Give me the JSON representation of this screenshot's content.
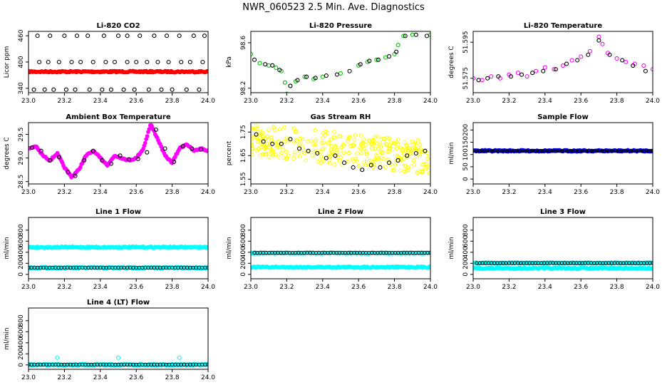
{
  "figure_title": "NWR_060523  2.5 Min. Ave. Diagnostics",
  "colors": {
    "black": "#000000",
    "red": "#ff0000",
    "green": "#00c000",
    "magenta": "#ff00ff",
    "yellow": "#ffff00",
    "blue": "#0000ff",
    "cyan": "#00ffff"
  },
  "chart_data": [
    {
      "type": "scatter",
      "title": "Li-820 CO2",
      "ylabel": "Licor ppm",
      "xlim": [
        23.0,
        24.0
      ],
      "ylim": [
        330,
        470
      ],
      "xticks": [
        "23.0",
        "23.2",
        "23.4",
        "23.6",
        "23.8",
        "24.0"
      ],
      "yticks": [
        "340",
        "400",
        "460"
      ],
      "series": [
        {
          "color": "#000000",
          "style": "open",
          "x": [
            23.05,
            23.12,
            23.2,
            23.27,
            23.33,
            23.42,
            23.5,
            23.55,
            23.62,
            23.7,
            23.77,
            23.84,
            23.92,
            23.98
          ],
          "y": [
            460,
            460,
            460,
            460,
            460,
            460,
            460,
            460,
            460,
            460,
            460,
            460,
            460,
            460
          ]
        },
        {
          "color": "#000000",
          "style": "open",
          "x": [
            23.06,
            23.11,
            23.17,
            23.24,
            23.29,
            23.36,
            23.43,
            23.48,
            23.55,
            23.6,
            23.66,
            23.72,
            23.78,
            23.85,
            23.9,
            23.97
          ],
          "y": [
            400,
            400,
            400,
            400,
            400,
            400,
            400,
            400,
            400,
            400,
            400,
            400,
            400,
            400,
            400,
            400
          ]
        },
        {
          "color": "#000000",
          "style": "open",
          "x": [
            23.03,
            23.09,
            23.14,
            23.21,
            23.26,
            23.34,
            23.41,
            23.46,
            23.53,
            23.59,
            23.67,
            23.74,
            23.8,
            23.88,
            23.95
          ],
          "y": [
            337,
            337,
            337,
            337,
            337,
            337,
            337,
            337,
            337,
            337,
            337,
            337,
            337,
            337,
            337
          ]
        },
        {
          "color": "#ff0000",
          "style": "band",
          "x": [
            23.0,
            24.0
          ],
          "y": [
            378,
            378
          ]
        }
      ]
    },
    {
      "type": "scatter",
      "title": "Li-820 Pressure",
      "ylabel": "kPa",
      "xlim": [
        23.0,
        24.0
      ],
      "ylim": [
        98.16,
        98.7
      ],
      "xticks": [
        "23.0",
        "23.2",
        "23.4",
        "23.6",
        "23.8",
        "24.0"
      ],
      "yticks": [
        "98.2",
        "98.6"
      ],
      "series": [
        {
          "color": "#00c000",
          "style": "open",
          "x": [
            23.0,
            23.05,
            23.1,
            23.14,
            23.17,
            23.19,
            23.2,
            23.22,
            23.25,
            23.3,
            23.35,
            23.4,
            23.5,
            23.6,
            23.65,
            23.7,
            23.75,
            23.8,
            23.82,
            23.85,
            23.9,
            24.0
          ],
          "y": [
            98.5,
            98.42,
            98.4,
            98.38,
            98.35,
            98.25,
            98.15,
            98.22,
            98.26,
            98.3,
            98.28,
            98.3,
            98.33,
            98.4,
            98.43,
            98.45,
            98.47,
            98.5,
            98.58,
            98.66,
            98.67,
            98.67
          ]
        },
        {
          "color": "#000000",
          "style": "open",
          "x": [
            23.02,
            23.08,
            23.12,
            23.16,
            23.22,
            23.26,
            23.31,
            23.36,
            23.42,
            23.48,
            23.55,
            23.61,
            23.66,
            23.71,
            23.77,
            23.81,
            23.86,
            23.92,
            23.98
          ],
          "y": [
            98.45,
            98.41,
            98.4,
            98.36,
            98.22,
            98.27,
            98.3,
            98.29,
            98.31,
            98.32,
            98.35,
            98.41,
            98.44,
            98.45,
            98.48,
            98.52,
            98.66,
            98.67,
            98.66
          ]
        }
      ]
    },
    {
      "type": "scatter",
      "title": "Li-820 Temperature",
      "ylabel": "degrees C",
      "xlim": [
        23.0,
        24.0
      ],
      "ylim": [
        51.567,
        51.601
      ],
      "xticks": [
        "23.0",
        "23.2",
        "23.4",
        "23.6",
        "23.8",
        "24.0"
      ],
      "yticks": [
        "51.575",
        "51.595"
      ],
      "series": [
        {
          "color": "#ff00ff",
          "style": "open",
          "x": [
            23.0,
            23.05,
            23.1,
            23.15,
            23.2,
            23.25,
            23.3,
            23.35,
            23.4,
            23.45,
            23.5,
            23.55,
            23.6,
            23.65,
            23.7,
            23.72,
            23.75,
            23.8,
            23.85,
            23.9,
            23.95,
            24.0
          ],
          "y": [
            51.575,
            51.574,
            51.576,
            51.575,
            51.577,
            51.578,
            51.576,
            51.579,
            51.581,
            51.58,
            51.582,
            51.585,
            51.587,
            51.59,
            51.598,
            51.594,
            51.589,
            51.586,
            51.584,
            51.583,
            51.582,
            51.58
          ]
        },
        {
          "color": "#000000",
          "style": "open",
          "x": [
            23.03,
            23.08,
            23.14,
            23.21,
            23.27,
            23.33,
            23.39,
            23.46,
            23.52,
            23.58,
            23.64,
            23.7,
            23.76,
            23.83,
            23.89,
            23.96
          ],
          "y": [
            51.574,
            51.575,
            51.576,
            51.576,
            51.577,
            51.578,
            51.579,
            51.58,
            51.583,
            51.585,
            51.588,
            51.596,
            51.588,
            51.585,
            51.582,
            51.579
          ]
        }
      ]
    },
    {
      "type": "line",
      "title": "Ambient Box Temperature",
      "ylabel": "degrees C",
      "xlim": [
        23.0,
        24.0
      ],
      "ylim": [
        28.45,
        29.75
      ],
      "xticks": [
        "23.0",
        "23.2",
        "23.4",
        "23.6",
        "23.8",
        "24.0"
      ],
      "yticks": [
        "28.5",
        "29.0",
        "29.5"
      ],
      "series": [
        {
          "color": "#ff00ff",
          "style": "band",
          "x": [
            23.0,
            23.04,
            23.08,
            23.12,
            23.16,
            23.2,
            23.24,
            23.28,
            23.32,
            23.36,
            23.4,
            23.44,
            23.48,
            23.52,
            23.56,
            23.6,
            23.64,
            23.68,
            23.72,
            23.76,
            23.8,
            23.84,
            23.88,
            23.92,
            23.96,
            24.0
          ],
          "y": [
            29.2,
            29.25,
            29.05,
            28.95,
            29.1,
            28.8,
            28.6,
            28.75,
            29.05,
            29.15,
            29.0,
            28.85,
            29.05,
            29.0,
            28.95,
            29.0,
            29.2,
            29.72,
            29.4,
            29.05,
            28.9,
            29.2,
            29.3,
            29.15,
            29.2,
            29.15
          ]
        },
        {
          "color": "#000000",
          "style": "open",
          "x": [
            23.02,
            23.07,
            23.12,
            23.17,
            23.22,
            23.26,
            23.31,
            23.36,
            23.41,
            23.46,
            23.51,
            23.56,
            23.61,
            23.66,
            23.71,
            23.76,
            23.81,
            23.86,
            23.91,
            23.96
          ],
          "y": [
            29.22,
            29.15,
            28.95,
            29.02,
            28.7,
            28.62,
            28.95,
            29.15,
            28.95,
            28.88,
            29.05,
            28.97,
            28.98,
            29.12,
            29.6,
            29.2,
            28.92,
            29.25,
            29.2,
            29.18
          ]
        }
      ]
    },
    {
      "type": "scatter",
      "title": "Gas Stream RH",
      "ylabel": "percent",
      "xlim": [
        23.0,
        24.0
      ],
      "ylim": [
        1.53,
        1.79
      ],
      "xticks": [
        "23.0",
        "23.2",
        "23.4",
        "23.6",
        "23.8",
        "24.0"
      ],
      "yticks": [
        "1.55",
        "1.65",
        "1.75"
      ],
      "series": [
        {
          "color": "#ffff00",
          "style": "cloud",
          "x": [
            23.0,
            24.0
          ],
          "y": [
            1.72,
            1.64
          ]
        },
        {
          "color": "#000000",
          "style": "open",
          "x": [
            23.03,
            23.07,
            23.12,
            23.17,
            23.22,
            23.27,
            23.32,
            23.37,
            23.42,
            23.47,
            23.52,
            23.57,
            23.62,
            23.67,
            23.72,
            23.77,
            23.82,
            23.87,
            23.92,
            23.97
          ],
          "y": [
            1.74,
            1.71,
            1.7,
            1.7,
            1.72,
            1.68,
            1.67,
            1.66,
            1.64,
            1.65,
            1.62,
            1.6,
            1.59,
            1.61,
            1.6,
            1.62,
            1.63,
            1.65,
            1.66,
            1.67
          ]
        }
      ]
    },
    {
      "type": "scatter",
      "title": "Sample Flow",
      "ylabel": "ml/min",
      "xlim": [
        23.0,
        24.0
      ],
      "ylim": [
        -20,
        230
      ],
      "xticks": [
        "23.0",
        "23.2",
        "23.4",
        "23.6",
        "23.8",
        "24.0"
      ],
      "yticks": [
        "0",
        "50",
        "100",
        "150",
        "200"
      ],
      "series": [
        {
          "color": "#0000ff",
          "style": "band",
          "x": [
            23.0,
            24.0
          ],
          "y": [
            115,
            115
          ]
        },
        {
          "color": "#000000",
          "style": "line",
          "x": [
            23.0,
            24.0
          ],
          "y": [
            115,
            115
          ]
        }
      ]
    },
    {
      "type": "scatter",
      "title": "Line 1 Flow",
      "ylabel": "ml/min",
      "xlim": [
        23.0,
        24.0
      ],
      "ylim": [
        -80,
        1030
      ],
      "xticks": [
        "23.0",
        "23.2",
        "23.4",
        "23.6",
        "23.8",
        "24.0"
      ],
      "yticks": [
        "0",
        "200",
        "400",
        "600",
        "800"
      ],
      "series": [
        {
          "color": "#00ffff",
          "style": "band",
          "x": [
            23.0,
            24.0
          ],
          "y": [
            490,
            490
          ]
        },
        {
          "color": "#00ffff",
          "style": "band",
          "x": [
            23.0,
            24.0
          ],
          "y": [
            120,
            120
          ]
        },
        {
          "color": "#000000",
          "style": "opensmall",
          "x": [
            23.0,
            24.0
          ],
          "y": [
            120,
            120
          ]
        }
      ]
    },
    {
      "type": "scatter",
      "title": "Line 2 Flow",
      "ylabel": "ml/min",
      "xlim": [
        23.0,
        24.0
      ],
      "ylim": [
        -80,
        1030
      ],
      "xticks": [
        "23.0",
        "23.2",
        "23.4",
        "23.6",
        "23.8",
        "24.0"
      ],
      "yticks": [
        "0",
        "200",
        "400",
        "600",
        "800"
      ],
      "series": [
        {
          "color": "#00ffff",
          "style": "band",
          "x": [
            23.0,
            24.0
          ],
          "y": [
            130,
            130
          ]
        },
        {
          "color": "#00ffff",
          "style": "band",
          "x": [
            23.0,
            24.0
          ],
          "y": [
            385,
            385
          ]
        },
        {
          "color": "#000000",
          "style": "opensmall",
          "x": [
            23.02,
            24.0
          ],
          "y": [
            390,
            390
          ]
        }
      ]
    },
    {
      "type": "scatter",
      "title": "Line 3 Flow",
      "ylabel": "ml/min",
      "xlim": [
        23.0,
        24.0
      ],
      "ylim": [
        -80,
        1030
      ],
      "xticks": [
        "23.0",
        "23.2",
        "23.4",
        "23.6",
        "23.8",
        "24.0"
      ],
      "yticks": [
        "0",
        "200",
        "400",
        "600",
        "800"
      ],
      "series": [
        {
          "color": "#00ffff",
          "style": "band",
          "x": [
            23.0,
            24.0
          ],
          "y": [
            110,
            110
          ]
        },
        {
          "color": "#00ffff",
          "style": "band",
          "x": [
            23.0,
            24.0
          ],
          "y": [
            205,
            205
          ]
        },
        {
          "color": "#000000",
          "style": "opensmall",
          "x": [
            23.02,
            24.0
          ],
          "y": [
            205,
            205
          ]
        }
      ]
    },
    {
      "type": "scatter",
      "title": "Line 4 (LT) Flow",
      "ylabel": "ml/min",
      "xlim": [
        23.0,
        24.0
      ],
      "ylim": [
        -80,
        1030
      ],
      "xticks": [
        "23.0",
        "23.2",
        "23.4",
        "23.6",
        "23.8",
        "24.0"
      ],
      "yticks": [
        "0",
        "200",
        "400",
        "600",
        "800"
      ],
      "series": [
        {
          "color": "#00ffff",
          "style": "band",
          "x": [
            23.0,
            24.0
          ],
          "y": [
            5,
            5
          ]
        },
        {
          "color": "#000000",
          "style": "opensmall",
          "x": [
            23.0,
            24.0
          ],
          "y": [
            5,
            5
          ]
        },
        {
          "color": "#00ffff",
          "style": "open",
          "x": [
            23.16,
            23.5,
            23.84
          ],
          "y": [
            130,
            130,
            130
          ]
        }
      ]
    }
  ]
}
